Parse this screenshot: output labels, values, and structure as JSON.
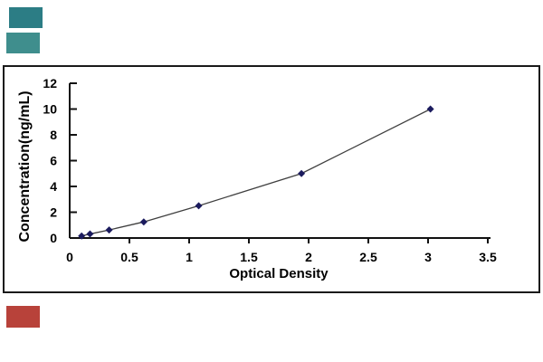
{
  "figure": {
    "background": "#ffffff",
    "frame_color": "#1a1a1a"
  },
  "decorations": {
    "swatches": [
      {
        "name": "teal-top",
        "color": "#2c7d85"
      },
      {
        "name": "teal-bottom",
        "color": "#3f8e8d"
      },
      {
        "name": "red-bottom-left",
        "color": "#b8423a"
      }
    ]
  },
  "chart_data": {
    "type": "line",
    "xlabel": "Optical Density",
    "ylabel": "Concentration(ng/mL)",
    "x": [
      0.1,
      0.17,
      0.33,
      0.62,
      1.08,
      1.94,
      3.02
    ],
    "y": [
      0.156,
      0.312,
      0.625,
      1.25,
      2.5,
      5,
      10
    ],
    "xlim": [
      0,
      3.6
    ],
    "ylim": [
      0,
      12
    ],
    "x_ticks": {
      "values": [
        0,
        0.5,
        1,
        1.5,
        2,
        2.5,
        3,
        3.5
      ],
      "labels": [
        "0",
        "0.5",
        "1",
        "1.5",
        "2",
        "2.5",
        "3",
        "3.5"
      ]
    },
    "y_ticks": {
      "values": [
        0,
        2,
        4,
        6,
        8,
        10,
        12
      ],
      "labels": [
        "0",
        "2",
        "4",
        "6",
        "8",
        "10",
        "12"
      ]
    },
    "grid": false,
    "legend": false,
    "axis_color": "#111111",
    "line_color": "#3f3f3f",
    "marker": {
      "shape": "diamond",
      "color": "#1b1b5e",
      "size": 8
    }
  }
}
